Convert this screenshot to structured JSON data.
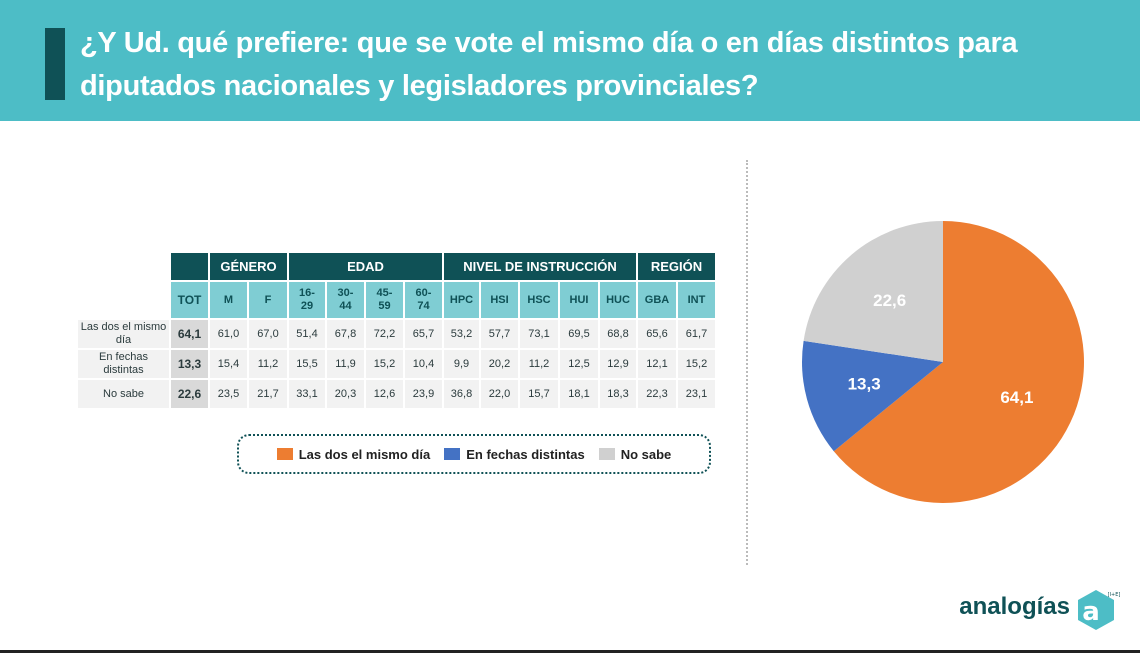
{
  "header": {
    "title": "¿Y Ud. qué prefiere: que se vote el mismo día o en días distintos para diputados nacionales y legisladores provinciales?"
  },
  "table": {
    "groups": [
      {
        "label": "GÉNERO",
        "span": 2
      },
      {
        "label": "EDAD",
        "span": 4
      },
      {
        "label": "NIVEL DE INSTRUCCIÓN",
        "span": 5
      },
      {
        "label": "REGIÓN",
        "span": 2
      }
    ],
    "columns": [
      "TOT",
      "M",
      "F",
      "16-\n29",
      "30-\n44",
      "45-\n59",
      "60-\n74",
      "HPC",
      "HSI",
      "HSC",
      "HUI",
      "HUC",
      "GBA",
      "INT"
    ],
    "rows": [
      {
        "label": "Las dos el mismo día",
        "values": [
          "64,1",
          "61,0",
          "67,0",
          "51,4",
          "67,8",
          "72,2",
          "65,7",
          "53,2",
          "57,7",
          "73,1",
          "69,5",
          "68,8",
          "65,6",
          "61,7"
        ]
      },
      {
        "label": "En fechas distintas",
        "values": [
          "13,3",
          "15,4",
          "11,2",
          "15,5",
          "11,9",
          "15,2",
          "10,4",
          "9,9",
          "20,2",
          "11,2",
          "12,5",
          "12,9",
          "12,1",
          "15,2"
        ]
      },
      {
        "label": "No sabe",
        "values": [
          "22,6",
          "23,5",
          "21,7",
          "33,1",
          "20,3",
          "12,6",
          "23,9",
          "36,8",
          "22,0",
          "15,7",
          "18,1",
          "18,3",
          "22,3",
          "23,1"
        ]
      }
    ]
  },
  "chart_data": {
    "type": "pie",
    "categories": [
      "Las dos el mismo día",
      "En fechas distintas",
      "No sabe"
    ],
    "values": [
      64.1,
      13.3,
      22.6
    ],
    "labels": [
      "64,1",
      "13,3",
      "22,6"
    ],
    "colors": [
      "#ed7d31",
      "#4472c4",
      "#d0d0d0"
    ],
    "legend": "bottom-left"
  },
  "logo": {
    "text": "analogías",
    "mark": "a",
    "mark_sup": "[I+E]"
  }
}
